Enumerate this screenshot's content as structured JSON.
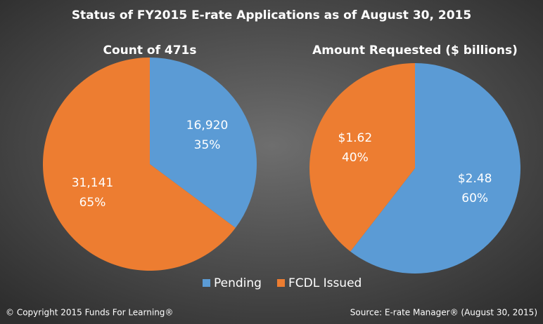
{
  "title": "Status of FY2015 E-rate Applications as of August 30, 2015",
  "copyright": "© Copyright 2015 Funds For Learning®",
  "source": "Source: E-rate Manager® (August 30, 2015)",
  "chart_data": [
    {
      "type": "pie",
      "title": "Count of 471s",
      "categories": [
        "Pending",
        "FCDL Issued"
      ],
      "values": [
        16920,
        31141
      ],
      "value_labels": [
        "16,920",
        "31,141"
      ],
      "percent_labels": [
        "35%",
        "65%"
      ],
      "colors": [
        "#5b9bd5",
        "#ed7d31"
      ]
    },
    {
      "type": "pie",
      "title": "Amount Requested ($ billions)",
      "categories": [
        "Pending",
        "FCDL Issued"
      ],
      "values": [
        2.48,
        1.62
      ],
      "value_labels": [
        "$2.48",
        "$1.62"
      ],
      "percent_labels": [
        "60%",
        "40%"
      ],
      "colors": [
        "#5b9bd5",
        "#ed7d31"
      ]
    }
  ]
}
